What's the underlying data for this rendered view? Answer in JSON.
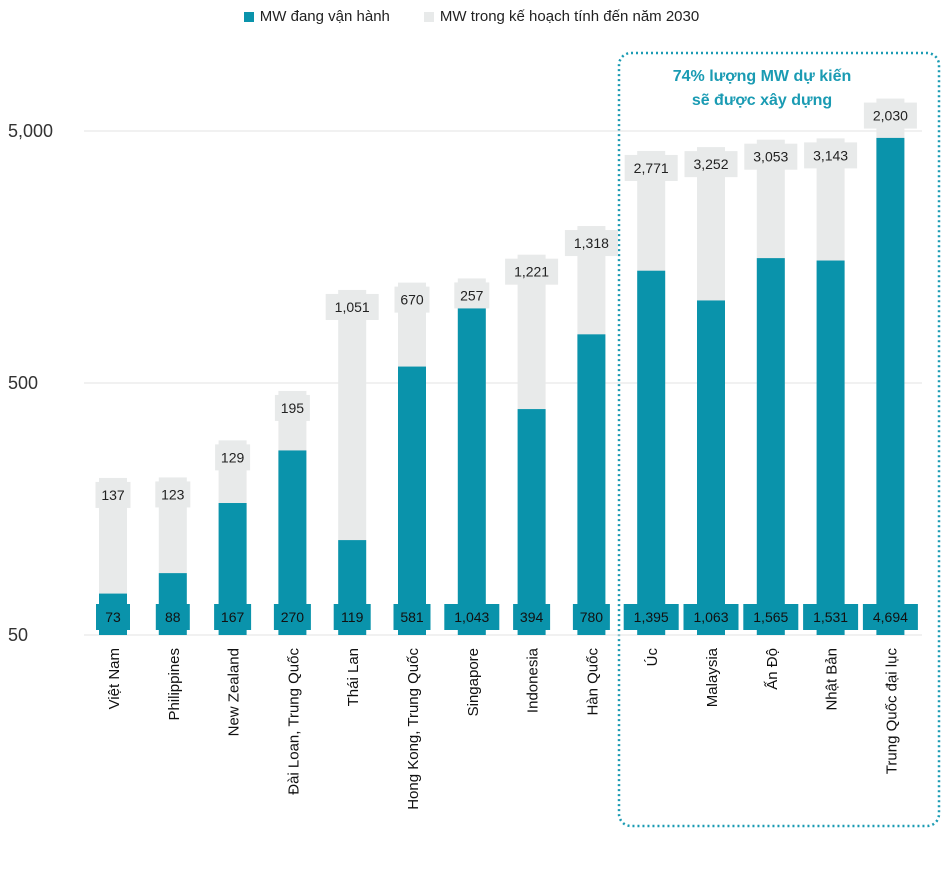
{
  "chart_data": {
    "type": "bar",
    "stacked": true,
    "yscale": "log",
    "ylim": [
      50,
      7000
    ],
    "yticks": [
      50,
      500,
      5000
    ],
    "ytick_labels": [
      "50",
      "500",
      "5,000"
    ],
    "legend": {
      "placement": "top-center",
      "entries": [
        "MW đang vận hành",
        "MW trong kế hoạch tính đến năm 2030"
      ]
    },
    "categories": [
      "Việt Nam",
      "Philippines",
      "New Zealand",
      "Đài Loan, Trung Quốc",
      "Thái Lan",
      "Hong Kong, Trung Quốc",
      "Singapore",
      "Indonesia",
      "Hàn Quốc",
      "Úc",
      "Malaysia",
      "Ấn Độ",
      "Nhật Bản",
      "Trung Quốc đại lục"
    ],
    "series": [
      {
        "name": "MW đang vận hành",
        "color": "#0a93ab",
        "values": [
          73,
          88,
          167,
          270,
          119,
          581,
          1043,
          394,
          780,
          1395,
          1063,
          1565,
          1531,
          4694
        ],
        "labels": [
          "73",
          "88",
          "167",
          "270",
          "119",
          "581",
          "1,043",
          "394",
          "780",
          "1,395",
          "1,063",
          "1,565",
          "1,531",
          "4,694"
        ]
      },
      {
        "name": "MW trong kế hoạch tính đến năm 2030",
        "color": "#e8eaea",
        "values": [
          137,
          123,
          129,
          195,
          1051,
          670,
          257,
          1221,
          1318,
          2771,
          3252,
          3053,
          3143,
          2030
        ],
        "labels": [
          "137",
          "123",
          "129",
          "195",
          "1,051",
          "670",
          "257",
          "1,221",
          "1,318",
          "2,771",
          "3,252",
          "3,053",
          "3,143",
          "2,030"
        ]
      }
    ],
    "annotation": {
      "line1": "74% lượng MW dự kiến",
      "line2": "sẽ được xây dựng",
      "color": "#1a9bb3"
    }
  }
}
